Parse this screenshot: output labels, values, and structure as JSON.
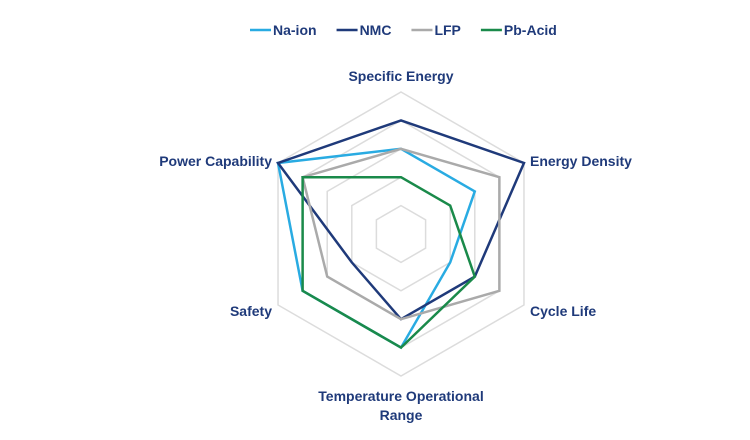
{
  "chart_data": {
    "type": "radar",
    "title": "",
    "axes": [
      "Specific Energy",
      "Energy Density",
      "Cycle Life",
      "Temperature Operational Range",
      "Safety",
      "Power Capability"
    ],
    "axis_label_lines": [
      [
        "Specific Energy"
      ],
      [
        "Energy Density"
      ],
      [
        "Cycle Life"
      ],
      [
        "Temperature Operational",
        "Range"
      ],
      [
        "Safety"
      ],
      [
        "Power Capability"
      ]
    ],
    "range": [
      0,
      5
    ],
    "grid_levels": 5,
    "legend_position": "top",
    "series": [
      {
        "name": "Na-ion",
        "color": "#29abe2",
        "values": [
          3,
          3,
          2,
          4,
          4,
          5
        ]
      },
      {
        "name": "NMC",
        "color": "#1f3a7a",
        "values": [
          4,
          5,
          3,
          3,
          2,
          5
        ]
      },
      {
        "name": "LFP",
        "color": "#aaaaaa",
        "values": [
          3,
          4,
          4,
          3,
          3,
          4
        ]
      },
      {
        "name": "Pb-Acid",
        "color": "#1a8a4a",
        "values": [
          2,
          2,
          3,
          4,
          4,
          4
        ]
      }
    ]
  }
}
